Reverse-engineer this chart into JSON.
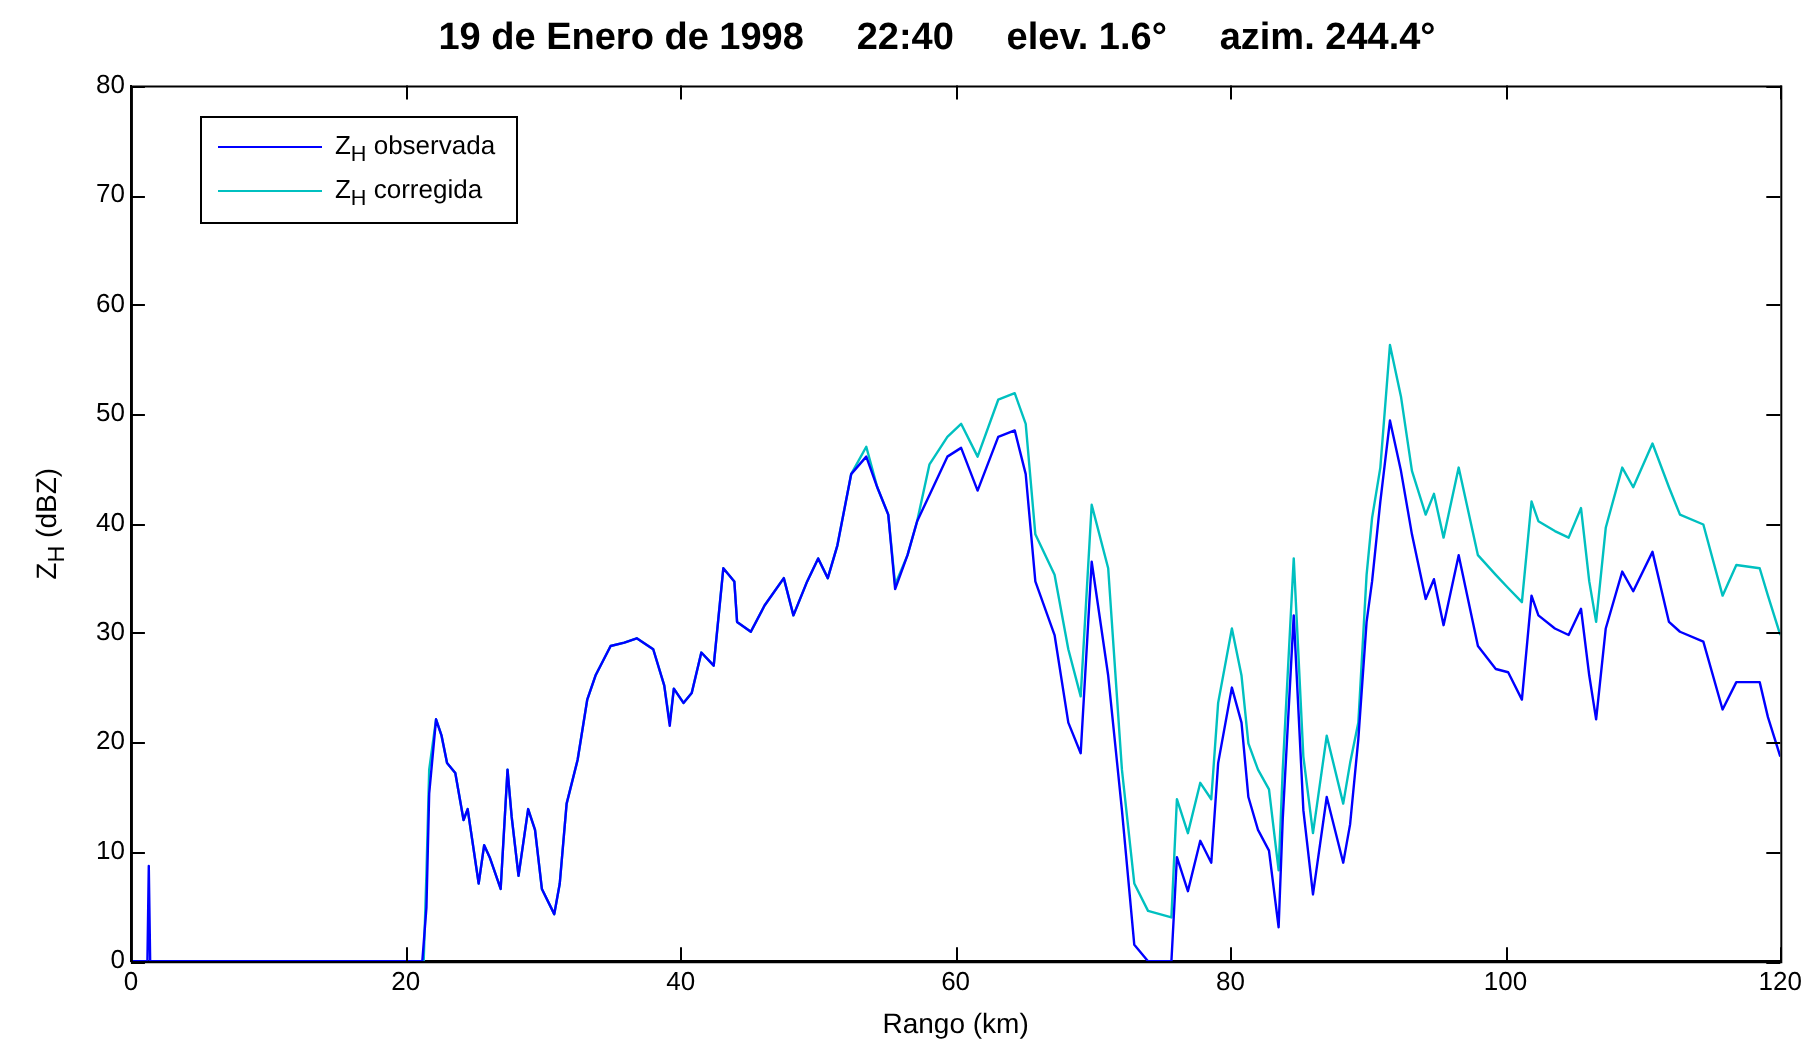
{
  "chart_data": {
    "type": "line",
    "title": "19 de Enero de 1998     22:40     elev. 1.6°     azim. 244.4°",
    "xlabel": "Rango (km)",
    "ylabel": "Z$_{H}$ (dBZ)",
    "x": [
      0,
      1.2,
      1.3,
      1.4,
      21.2,
      21.3,
      21.5,
      21.7,
      22.2,
      22.6,
      23.0,
      23.6,
      24.2,
      24.5,
      25.3,
      25.7,
      26.1,
      26.9,
      27.4,
      27.7,
      28.2,
      28.9,
      29.4,
      29.9,
      30.8,
      31.2,
      31.7,
      32.5,
      33.2,
      33.8,
      34.9,
      35.9,
      36.8,
      38.0,
      38.8,
      39.2,
      39.5,
      40.2,
      40.8,
      41.5,
      42.4,
      43.1,
      43.9,
      44.1,
      45.1,
      46.1,
      47.5,
      48.2,
      49.2,
      50.0,
      50.7,
      51.4,
      52.4,
      53.5,
      54.3,
      55.1,
      55.6,
      56.5,
      57.2,
      58.1,
      59.4,
      60.4,
      61.6,
      63.1,
      64.3,
      65.1,
      65.8,
      67.2,
      68.2,
      69.1,
      69.9,
      71.1,
      72.1,
      73.0,
      74.0,
      75.7,
      76.1,
      76.9,
      77.8,
      78.6,
      79.1,
      80.1,
      80.8,
      81.3,
      82.0,
      82.8,
      83.5,
      83.8,
      84.6,
      85.3,
      86.0,
      87.0,
      88.2,
      88.7,
      89.3,
      89.9,
      90.3,
      90.9,
      91.6,
      92.4,
      93.2,
      94.2,
      94.8,
      95.5,
      96.6,
      98.0,
      99.3,
      100.2,
      101.2,
      101.9,
      102.4,
      103.6,
      104.6,
      105.5,
      106.1,
      106.6,
      107.3,
      108.5,
      109.3,
      110.7,
      111.9,
      112.7,
      114.4,
      115.8,
      116.8,
      118.5,
      119.1,
      120
    ],
    "series": [
      {
        "name": "Z$_{H}$ observada",
        "color": "#0000ff",
        "values": [
          0,
          0,
          8.7,
          0,
          0,
          0,
          4.9,
          15.3,
          22.1,
          20.6,
          18.1,
          17.2,
          12.9,
          13.9,
          7.1,
          10.6,
          9.5,
          6.6,
          17.5,
          13.2,
          7.8,
          13.9,
          12.0,
          6.6,
          4.3,
          7.1,
          14.4,
          18.4,
          23.9,
          26.1,
          28.8,
          29.1,
          29.5,
          28.5,
          25.2,
          21.5,
          24.9,
          23.6,
          24.5,
          28.2,
          27.0,
          35.9,
          34.7,
          31.0,
          30.1,
          32.5,
          35.0,
          31.6,
          34.7,
          36.8,
          35.0,
          38.0,
          44.5,
          46.1,
          43.3,
          40.8,
          34.0,
          37.1,
          40.2,
          42.6,
          46.1,
          46.9,
          43.0,
          47.9,
          48.5,
          44.5,
          34.7,
          29.8,
          21.8,
          19.0,
          36.5,
          26.1,
          13.8,
          1.5,
          0,
          0,
          9.5,
          6.4,
          11.0,
          9.0,
          18.1,
          25.0,
          21.8,
          15.0,
          12.0,
          10.1,
          3.1,
          13.0,
          31.6,
          13.8,
          6.1,
          15.0,
          9.0,
          12.5,
          20.3,
          31.0,
          34.7,
          42.0,
          49.4,
          44.8,
          39.0,
          33.1,
          34.9,
          30.7,
          37.1,
          28.8,
          26.7,
          26.4,
          23.9,
          33.4,
          31.6,
          30.4,
          29.8,
          32.2,
          26.1,
          22.1,
          30.4,
          35.6,
          33.8,
          37.4,
          31.0,
          30.1,
          29.2,
          23.0,
          25.5,
          25.5,
          22.3,
          18.7
        ]
      },
      {
        "name": "Z$_{H}$ corregida",
        "color": "#00c0c0",
        "values": [
          null,
          null,
          null,
          null,
          null,
          0,
          8,
          17.5,
          22.1,
          20.6,
          18.1,
          17.2,
          12.9,
          13.9,
          7.1,
          10.6,
          9.5,
          6.6,
          17.5,
          13.2,
          7.8,
          13.9,
          12.0,
          6.6,
          4.3,
          7.1,
          14.4,
          18.4,
          23.9,
          26.1,
          28.8,
          29.1,
          29.5,
          28.5,
          25.2,
          21.8,
          24.9,
          23.6,
          24.5,
          28.2,
          27.0,
          35.9,
          34.7,
          31.0,
          30.1,
          32.5,
          35.0,
          31.6,
          34.7,
          36.8,
          35.0,
          38.0,
          44.5,
          47.0,
          43.3,
          40.8,
          34.4,
          37.1,
          40.2,
          45.4,
          47.9,
          49.1,
          46.1,
          51.3,
          51.9,
          49.1,
          39.0,
          35.3,
          28.5,
          24.2,
          41.7,
          35.9,
          17.5,
          7.1,
          4.6,
          4.0,
          14.8,
          11.7,
          16.3,
          14.8,
          23.6,
          30.4,
          26.1,
          19.9,
          17.5,
          15.7,
          8.3,
          17.5,
          36.8,
          18.7,
          11.7,
          20.6,
          14.4,
          18.1,
          21.8,
          35.3,
          40.5,
          45.1,
          56.3,
          51.6,
          44.8,
          40.8,
          42.7,
          38.7,
          45.1,
          37.1,
          35.3,
          34.1,
          32.8,
          42.0,
          40.2,
          39.3,
          38.7,
          41.4,
          34.7,
          31.0,
          39.6,
          45.1,
          43.3,
          47.3,
          43.3,
          40.8,
          39.9,
          33.4,
          36.2,
          35.9,
          33.4,
          29.8
        ]
      }
    ],
    "xlim": [
      0,
      120
    ],
    "xticks": [
      0,
      20,
      40,
      60,
      80,
      100,
      120
    ],
    "ylim": [
      0,
      80
    ],
    "yticks": [
      0,
      10,
      20,
      30,
      40,
      50,
      60,
      70,
      80
    ],
    "grid": false,
    "legend": "top left",
    "marker": "none",
    "line_style": "solid"
  }
}
